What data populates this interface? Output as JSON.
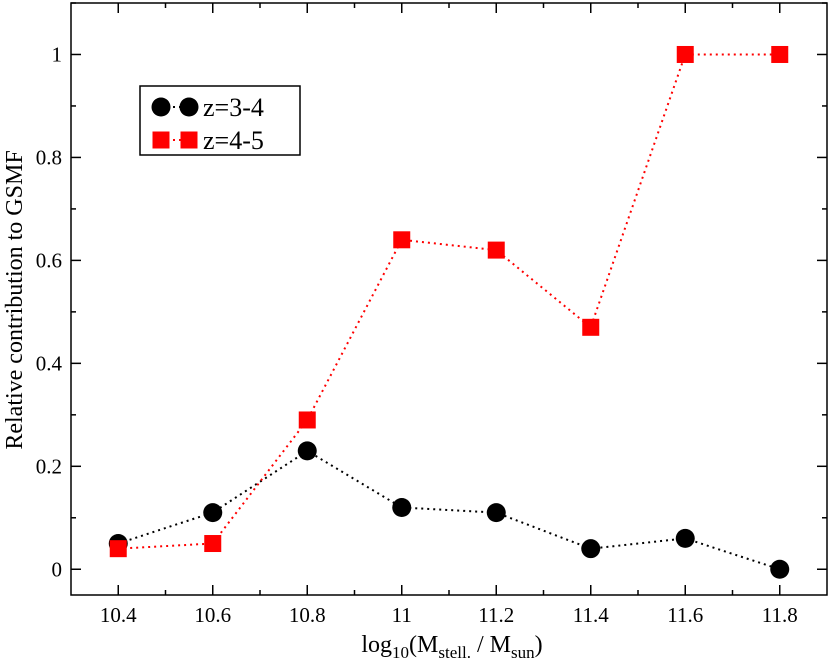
{
  "chart_data": {
    "type": "line",
    "title": "",
    "xlabel": {
      "base": "log",
      "base_subscript": "10",
      "open": "(M",
      "num_subscript": "stell.",
      "middle": " / M",
      "den_subscript": "sun",
      "close": ")"
    },
    "ylabel": "Relative contribution to GSMF",
    "xlim": [
      10.3,
      11.9
    ],
    "ylim": [
      -0.05,
      1.1
    ],
    "xticks": [
      10.4,
      10.6,
      10.8,
      11.0,
      11.2,
      11.4,
      11.6,
      11.8
    ],
    "xtick_labels": [
      "10.4",
      "10.6",
      "10.8",
      "11",
      "11.2",
      "11.4",
      "11.6",
      "11.8"
    ],
    "yticks": [
      0,
      0.2,
      0.4,
      0.6,
      0.8,
      1.0
    ],
    "ytick_labels": [
      "0",
      "0.2",
      "0.4",
      "0.6",
      "0.8",
      "1"
    ],
    "grid": false,
    "legend_position": "top-left",
    "x": [
      10.4,
      10.6,
      10.8,
      11.0,
      11.2,
      11.4,
      11.6,
      11.8
    ],
    "series": [
      {
        "name": "z=3-4",
        "marker": "circle",
        "color": "#000000",
        "line_style": "dotted",
        "values": [
          0.05,
          0.11,
          0.23,
          0.12,
          0.11,
          0.04,
          0.06,
          0.0
        ]
      },
      {
        "name": "z=4-5",
        "marker": "square",
        "color": "#ff0000",
        "line_style": "dotted",
        "values": [
          0.04,
          0.05,
          0.29,
          0.64,
          0.62,
          0.47,
          1.0,
          1.0
        ]
      }
    ]
  }
}
